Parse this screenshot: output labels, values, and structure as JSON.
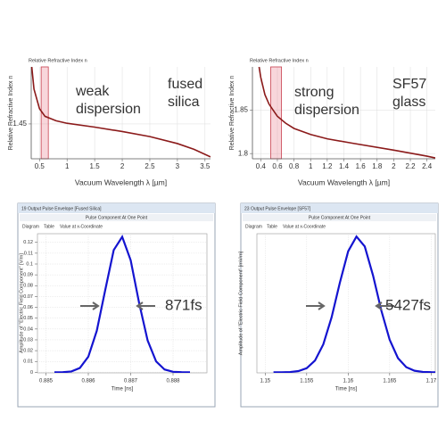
{
  "chart_data": [
    {
      "type": "line",
      "title": "Relative Refractive Index n",
      "y_label": "Relative Refractive Index n",
      "x_label": "Vacuum Wavelength λ [µm]",
      "x": [
        0.36,
        0.4,
        0.5,
        0.6,
        0.8,
        1.0,
        1.5,
        2.0,
        2.5,
        3.0,
        3.3,
        3.6
      ],
      "values": [
        1.54,
        1.505,
        1.474,
        1.462,
        1.455,
        1.451,
        1.445,
        1.438,
        1.43,
        1.419,
        1.41,
        1.398
      ],
      "color": "#8b1a1a",
      "xlim": [
        0.35,
        3.6
      ],
      "ylim": [
        1.395,
        1.54
      ],
      "xticks": [
        0.5,
        1,
        1.5,
        2,
        2.5,
        3,
        3.5
      ],
      "yticks": [
        1.45
      ],
      "grid": true,
      "highlight_range": [
        0.53,
        0.66
      ],
      "annotations": [
        [
          "weak",
          "dispersion"
        ],
        [
          "fused",
          "silica"
        ]
      ]
    },
    {
      "type": "line",
      "title": "Relative Refractive Index n",
      "y_label": "Relative Refractive Index n",
      "x_label": "Vacuum Wavelength λ [µm]",
      "x": [
        0.38,
        0.4,
        0.45,
        0.5,
        0.6,
        0.7,
        0.8,
        1.0,
        1.2,
        1.5,
        2.0,
        2.4,
        2.5
      ],
      "values": [
        1.9,
        1.888,
        1.868,
        1.857,
        1.843,
        1.835,
        1.829,
        1.822,
        1.817,
        1.812,
        1.804,
        1.797,
        1.795
      ],
      "color": "#8b1a1a",
      "xlim": [
        0.3,
        2.5
      ],
      "ylim": [
        1.794,
        1.9
      ],
      "xticks": [
        0.4,
        0.6,
        0.8,
        1,
        1.2,
        1.4,
        1.6,
        1.8,
        2,
        2.2,
        2.4
      ],
      "yticks": [
        1.8,
        1.85
      ],
      "grid": true,
      "highlight_range": [
        0.52,
        0.65
      ],
      "annotations": [
        [
          "strong",
          "dispersion"
        ],
        [
          "SF57",
          "glass"
        ]
      ]
    },
    {
      "type": "line",
      "window_title": "19 Output Pulse Envelope [Fused Silica]",
      "panel_title": "Pulse Component At One Point",
      "tabs": [
        "Diagram",
        "Table",
        "Value at x-Coordinate"
      ],
      "y_label": "Amplitude of \"Electric Field Component\" [V/m]",
      "x_label": "Time [ns]",
      "x": [
        0.8852,
        0.8854,
        0.8856,
        0.8858,
        0.886,
        0.8862,
        0.8864,
        0.8866,
        0.8868,
        0.887,
        0.8872,
        0.8874,
        0.8876,
        0.8878,
        0.888,
        0.8882,
        0.8884
      ],
      "values": [
        0.0,
        0.0001,
        0.0008,
        0.004,
        0.0144,
        0.0383,
        0.0761,
        0.1129,
        0.1251,
        0.1035,
        0.0639,
        0.0294,
        0.0101,
        0.0026,
        0.0005,
        0.0001,
        0.0
      ],
      "color": "#1414d0",
      "xlim": [
        0.8848,
        0.8888
      ],
      "ylim": [
        -0.0005,
        0.128
      ],
      "xticks": [
        0.885,
        0.886,
        0.887,
        0.888
      ],
      "yticks": [
        0,
        0.01,
        0.02,
        0.03,
        0.04,
        0.05,
        0.06,
        0.07,
        0.08,
        0.09,
        0.1,
        0.11,
        0.12
      ],
      "grid": true,
      "fwhm_label": "871fs"
    },
    {
      "type": "line",
      "window_title": "23 Output Pulse Envelope [SF57]",
      "panel_title": "Pulse Component At One Point",
      "tabs": [
        "Diagram",
        "Table",
        "Value at x-Coordinate"
      ],
      "y_label": "Amplitude of \"Electric Field Component\" [mV/m]",
      "x_label": "Time [ns]",
      "x": [
        1.151,
        1.152,
        1.153,
        1.154,
        1.155,
        1.156,
        1.157,
        1.158,
        1.159,
        1.16,
        1.161,
        1.162,
        1.163,
        1.164,
        1.165,
        1.166,
        1.167,
        1.168,
        1.169,
        1.17,
        1.171
      ],
      "values": [
        0.0,
        0.02,
        0.1,
        0.42,
        1.45,
        4.15,
        9.87,
        19.4,
        31.7,
        42.8,
        48.0,
        44.5,
        34.2,
        21.8,
        11.5,
        5.01,
        1.81,
        0.54,
        0.13,
        0.03,
        0.0
      ],
      "color": "#1414d0",
      "xlim": [
        1.149,
        1.1705
      ],
      "ylim": [
        -0.2,
        49
      ],
      "xticks": [
        1.15,
        1.155,
        1.16,
        1.165,
        1.17
      ],
      "grid": true,
      "fwhm_label": "5427fs"
    }
  ]
}
